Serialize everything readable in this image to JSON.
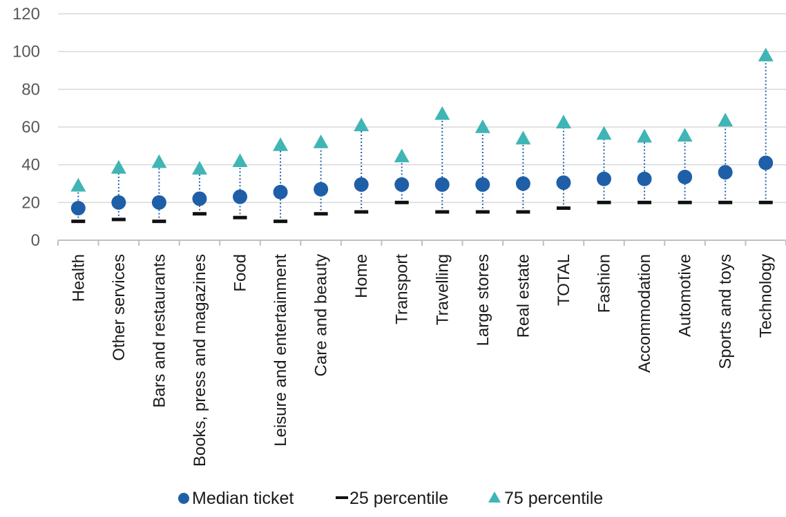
{
  "chart_data": {
    "type": "scatter",
    "title": "",
    "xlabel": "",
    "ylabel": "",
    "ylim": [
      0,
      120
    ],
    "yticks": [
      0,
      20,
      40,
      60,
      80,
      100,
      120
    ],
    "grid": true,
    "legend_placement": "bottom",
    "categories": [
      "Health",
      "Other services",
      "Bars and restaurants",
      "Books, press and magazines",
      "Food",
      "Leisure and entertainment",
      "Care and beauty",
      "Home",
      "Transport",
      "Travelling",
      "Large stores",
      "Real estate",
      "TOTAL",
      "Fashion",
      "Accommodation",
      "Automotive",
      "Sports and toys",
      "Technology"
    ],
    "series": [
      {
        "name": "Median ticket",
        "marker": "circle",
        "color": "#1f5fa8",
        "values": [
          17,
          20,
          20,
          22,
          23,
          25.5,
          27,
          29.5,
          29.5,
          29.5,
          29.5,
          30,
          30.5,
          32.5,
          32.5,
          33.5,
          36,
          41
        ]
      },
      {
        "name": "25 percentile",
        "marker": "dash",
        "color": "#111111",
        "values": [
          10,
          11,
          10,
          14,
          12,
          10,
          14,
          15,
          20,
          15,
          15,
          15,
          17,
          20,
          20,
          20,
          20,
          20
        ]
      },
      {
        "name": "75 percentile",
        "marker": "triangle",
        "color": "#3fb5b5",
        "values": [
          29,
          38.5,
          41.5,
          38,
          42,
          50.5,
          52,
          61,
          44.5,
          67,
          60,
          54,
          62.5,
          56.5,
          55,
          55.5,
          63.5,
          98
        ]
      }
    ],
    "connector_color": "#1f5fa8",
    "gridline_color": "#d9d9d9",
    "axis_color": "#bfbfbf"
  }
}
